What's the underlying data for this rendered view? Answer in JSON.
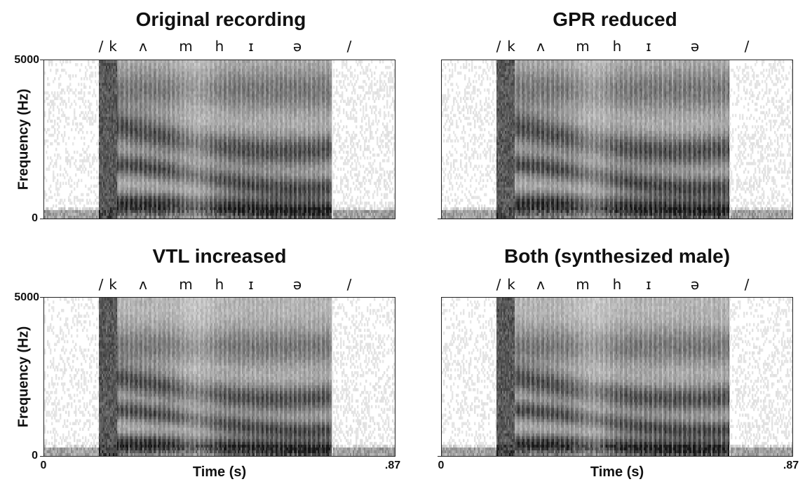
{
  "chart_data": [
    {
      "type": "heatmap",
      "title": "Original recording",
      "xlabel": "",
      "ylabel": "Frequency (Hz)",
      "xlim": [
        0,
        0.87
      ],
      "ylim": [
        0,
        5000
      ],
      "yticks": [
        "0",
        "5000"
      ],
      "xticks": [],
      "phonemes": [
        "/",
        "k",
        "ʌ",
        "m",
        "h",
        "ɪ",
        "ə",
        "/"
      ],
      "variant": "original"
    },
    {
      "type": "heatmap",
      "title": "GPR reduced",
      "xlabel": "",
      "ylabel": "",
      "xlim": [
        0,
        0.87
      ],
      "ylim": [
        0,
        5000
      ],
      "yticks": [],
      "xticks": [],
      "phonemes": [
        "/",
        "k",
        "ʌ",
        "m",
        "h",
        "ɪ",
        "ə",
        "/"
      ],
      "variant": "gpr"
    },
    {
      "type": "heatmap",
      "title": "VTL increased",
      "xlabel": "Time (s)",
      "ylabel": "Frequency (Hz)",
      "xlim": [
        0,
        0.87
      ],
      "ylim": [
        0,
        5000
      ],
      "yticks": [
        "0",
        "5000"
      ],
      "xticks": [
        "0",
        ".87"
      ],
      "phonemes": [
        "/",
        "k",
        "ʌ",
        "m",
        "h",
        "ɪ",
        "ə",
        "/"
      ],
      "variant": "vtl"
    },
    {
      "type": "heatmap",
      "title": "Both (synthesized male)",
      "xlabel": "Time (s)",
      "ylabel": "",
      "xlim": [
        0,
        0.87
      ],
      "ylim": [
        0,
        5000
      ],
      "yticks": [],
      "xticks": [
        "0",
        ".87"
      ],
      "phonemes": [
        "/",
        "k",
        "ʌ",
        "m",
        "h",
        "ɪ",
        "ə",
        "/"
      ],
      "variant": "both"
    }
  ]
}
